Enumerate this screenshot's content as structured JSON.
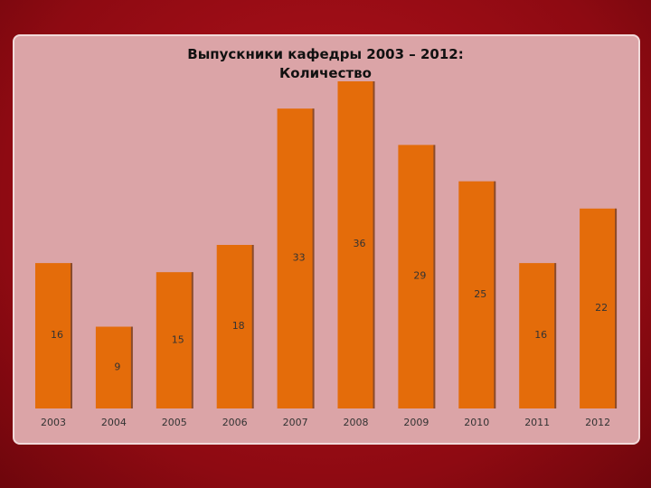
{
  "chart_data": {
    "type": "bar",
    "title": "Выпускники кафедры 2003 – 2012: Количество",
    "categories": [
      "2003",
      "2004",
      "2005",
      "2006",
      "2007",
      "2008",
      "2009",
      "2010",
      "2011",
      "2012"
    ],
    "values": [
      16,
      9,
      15,
      18,
      33,
      36,
      29,
      25,
      16,
      22
    ],
    "color": "#e46c0a"
  }
}
